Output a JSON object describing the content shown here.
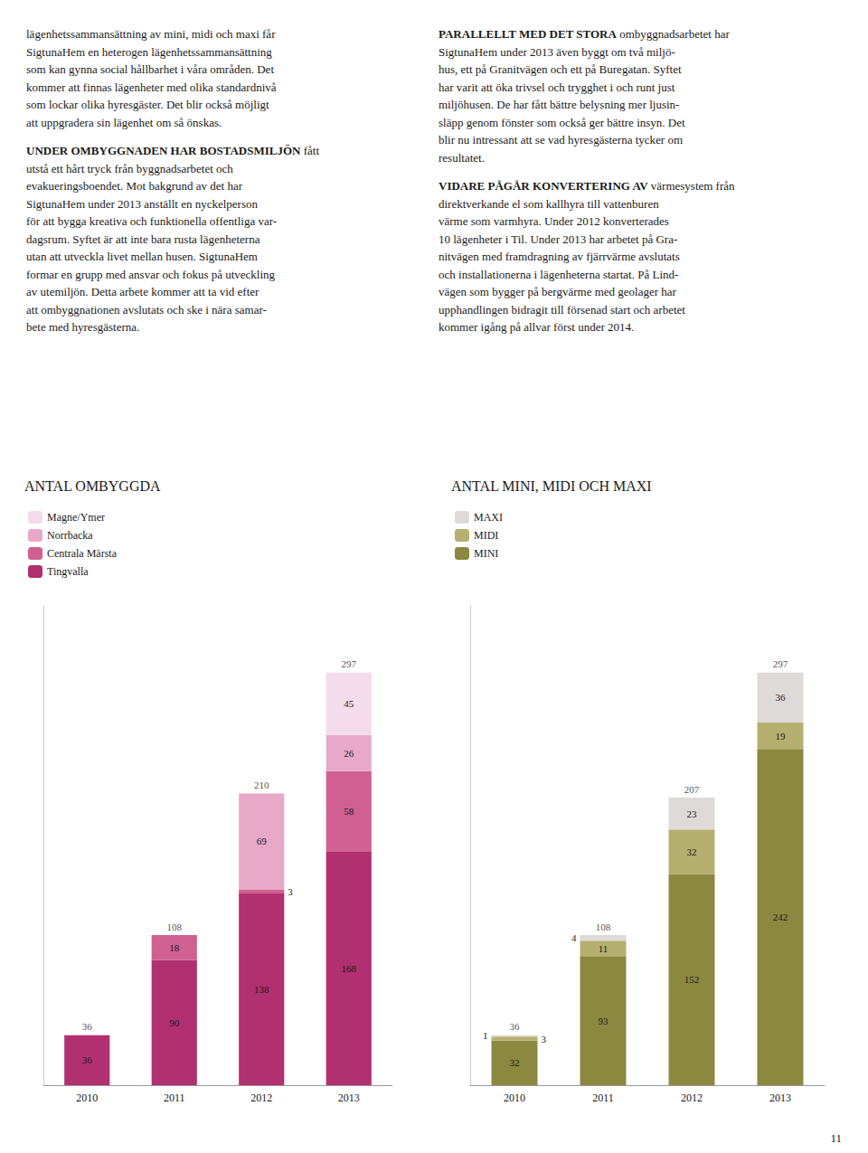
{
  "chart_data": [
    {
      "type": "bar",
      "title": "ANTAL OMBYGGDA",
      "categories": [
        "2010",
        "2011",
        "2012",
        "2013"
      ],
      "series": [
        {
          "name": "Tingvalla",
          "color": "#b03070",
          "values": [
            36,
            90,
            138,
            168
          ]
        },
        {
          "name": "Centrala Märsta",
          "color": "#d06090",
          "values": [
            0,
            18,
            3,
            58
          ]
        },
        {
          "name": "Norrbacka",
          "color": "#e8a8c8",
          "values": [
            0,
            0,
            69,
            26
          ]
        },
        {
          "name": "Magne/Ymer",
          "color": "#f5dcea",
          "values": [
            0,
            0,
            0,
            45
          ]
        }
      ],
      "totals": [
        36,
        108,
        210,
        297
      ],
      "stacked": true,
      "data_labels": true,
      "legend": "top-left",
      "grid": false,
      "tick_labels": "x",
      "ylim": [
        0,
        345
      ]
    },
    {
      "type": "bar",
      "title": "ANTAL MINI, MIDI OCH MAXI",
      "categories": [
        "2010",
        "2011",
        "2012",
        "2013"
      ],
      "series": [
        {
          "name": "MINI",
          "color": "#8b8840",
          "values": [
            32,
            93,
            152,
            242
          ]
        },
        {
          "name": "MIDI",
          "color": "#b5b070",
          "values": [
            3,
            11,
            32,
            19
          ]
        },
        {
          "name": "MAXI",
          "color": "#dedad8",
          "values": [
            1,
            4,
            23,
            36
          ]
        }
      ],
      "totals": [
        36,
        108,
        207,
        297
      ],
      "stacked": true,
      "data_labels": true,
      "legend": "top-left",
      "grid": false,
      "tick_labels": "x",
      "ylim": [
        0,
        345
      ]
    }
  ],
  "annotations": [
    [
      "lägenhetssammansättning av mini, midi och maxi får",
      "SigtunaHem en heterogen lägenhetssammansättning",
      "som kan gynna social hållbarhet i våra områden. Det",
      "kommer att finnas lägenheter med olika standardnivå",
      "som lockar olika hyresgäster. Det blir också möjligt",
      "att uppgradera sin lägenhet om så önskas."
    ],
    [
      "UNDER OMBYGGNADEN HAR BOSTADSMILJÖN fått",
      "utstå ett hårt tryck från byggnadsarbetet och",
      "evakueringsboendet. Mot bakgrund av det har",
      "SigtunaHem under 2013 anställt en nyckelperson",
      "för att bygga kreativa och funktionella offentliga var-",
      "dagsrum. Syftet är att inte bara rusta lägenheterna",
      "utan att utveckla livet mellan husen. SigtunaHem",
      "formar en grupp med ansvar och fokus på utveckling",
      "av utemiljön. Detta arbete kommer att ta vid efter",
      "att ombyggnationen avslutats och ske i nära samar-",
      "bete med hyresgästerna."
    ],
    [
      "PARALLELLT MED DET STORA ombyggnadsarbetet har",
      "SigtunaHem under 2013 även byggt om två miljö-",
      "hus, ett på Granitvägen och ett på Buregatan. Syftet",
      "har varit att öka trivsel och trygghet i och runt just",
      "miljöhusen. De har fått bättre belysning mer ljusin-",
      "släpp genom fönster som också ger bättre insyn. Det",
      "blir nu intressant att se vad hyresgästerna tycker om",
      "resultatet."
    ],
    [
      "VIDARE PÅGÅR KONVERTERING AV värmesystem från",
      "direktverkande el som kallhyra till vattenburen",
      "värme som varmhyra. Under 2012 konverterades",
      "10 lägenheter i Til. Under 2013 har arbetet på Gra-",
      "nitvägen med framdragning av fjärrvärme avslutats",
      "och installationerna i lägenheterna startat. På Lind-",
      "vägen som bygger på bergvärme med geolager har",
      "upphandlingen bidragit till försenad start och arbetet",
      "kommer igång på allvar först under 2014."
    ],
    [
      "11"
    ]
  ]
}
